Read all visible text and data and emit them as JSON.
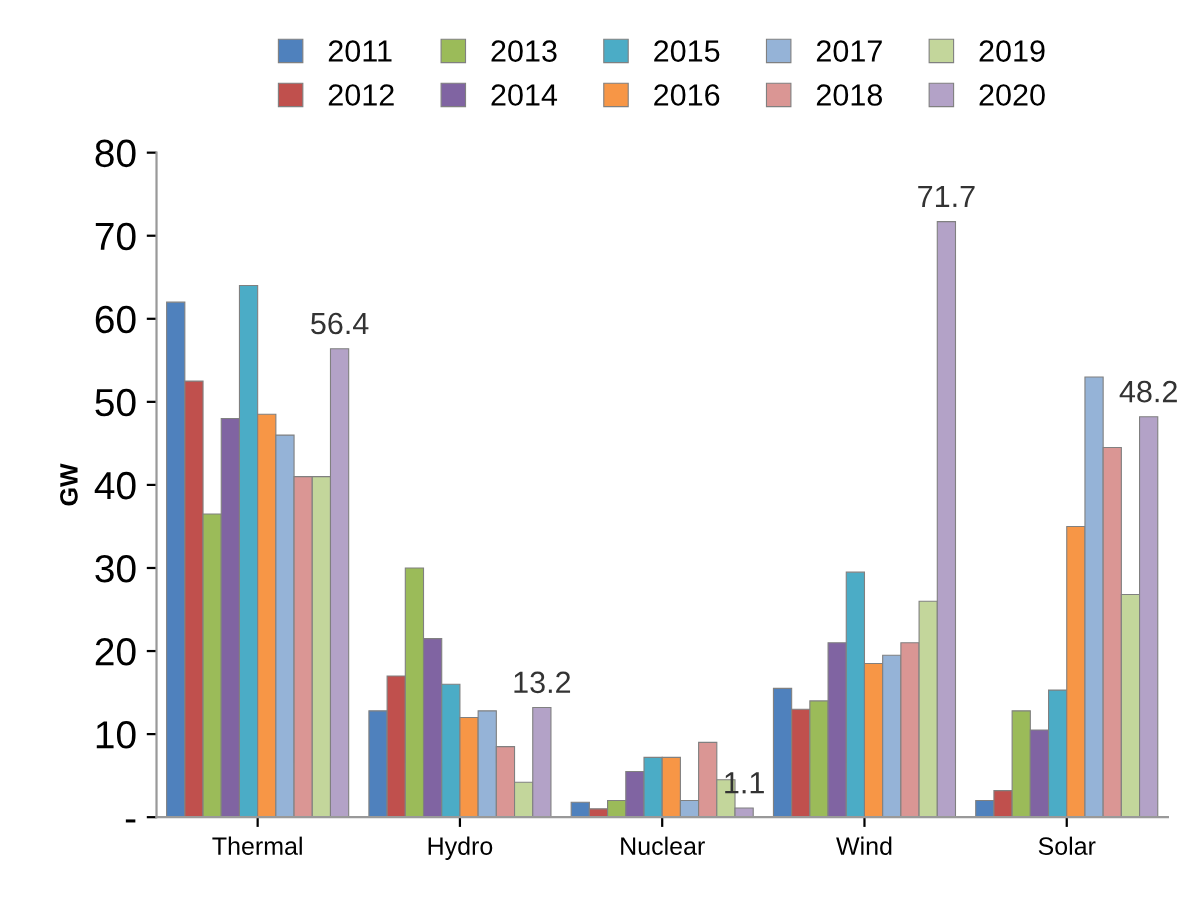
{
  "chart_data": {
    "type": "bar",
    "ylabel": "GW",
    "categories": [
      "Thermal",
      "Hydro",
      "Nuclear",
      "Wind",
      "Solar"
    ],
    "series": [
      {
        "name": "2011",
        "color": "#4f81bd",
        "values": [
          62,
          12.8,
          1.8,
          15.5,
          2
        ]
      },
      {
        "name": "2012",
        "color": "#c0504d",
        "values": [
          52.5,
          17,
          1,
          13,
          3.2
        ]
      },
      {
        "name": "2013",
        "color": "#9bbb59",
        "values": [
          36.5,
          30,
          2,
          14,
          12.8
        ]
      },
      {
        "name": "2014",
        "color": "#8064a2",
        "values": [
          48,
          21.5,
          5.5,
          21,
          10.5
        ]
      },
      {
        "name": "2015",
        "color": "#4bacc6",
        "values": [
          64,
          16,
          7.2,
          29.5,
          15.3
        ]
      },
      {
        "name": "2016",
        "color": "#f79646",
        "values": [
          48.5,
          12,
          7.2,
          18.5,
          35
        ]
      },
      {
        "name": "2017",
        "color": "#95b3d7",
        "values": [
          46,
          12.8,
          2,
          19.5,
          53
        ]
      },
      {
        "name": "2018",
        "color": "#da9694",
        "values": [
          41,
          8.5,
          9,
          21,
          44.5
        ]
      },
      {
        "name": "2019",
        "color": "#c3d69b",
        "values": [
          41,
          4.2,
          4.5,
          26,
          26.8
        ]
      },
      {
        "name": "2020",
        "color": "#b3a2c7",
        "values": [
          56.4,
          13.2,
          1.1,
          71.7,
          48.2
        ],
        "value_labels": [
          "56.4",
          "13.2",
          "1.1",
          "71.7",
          "48.2"
        ]
      }
    ],
    "ylim": [
      0,
      80
    ],
    "yticks": [
      {
        "value": 0,
        "label": "-"
      },
      10,
      20,
      30,
      40,
      50,
      60,
      70,
      80
    ],
    "legend": "top",
    "grid": false
  }
}
